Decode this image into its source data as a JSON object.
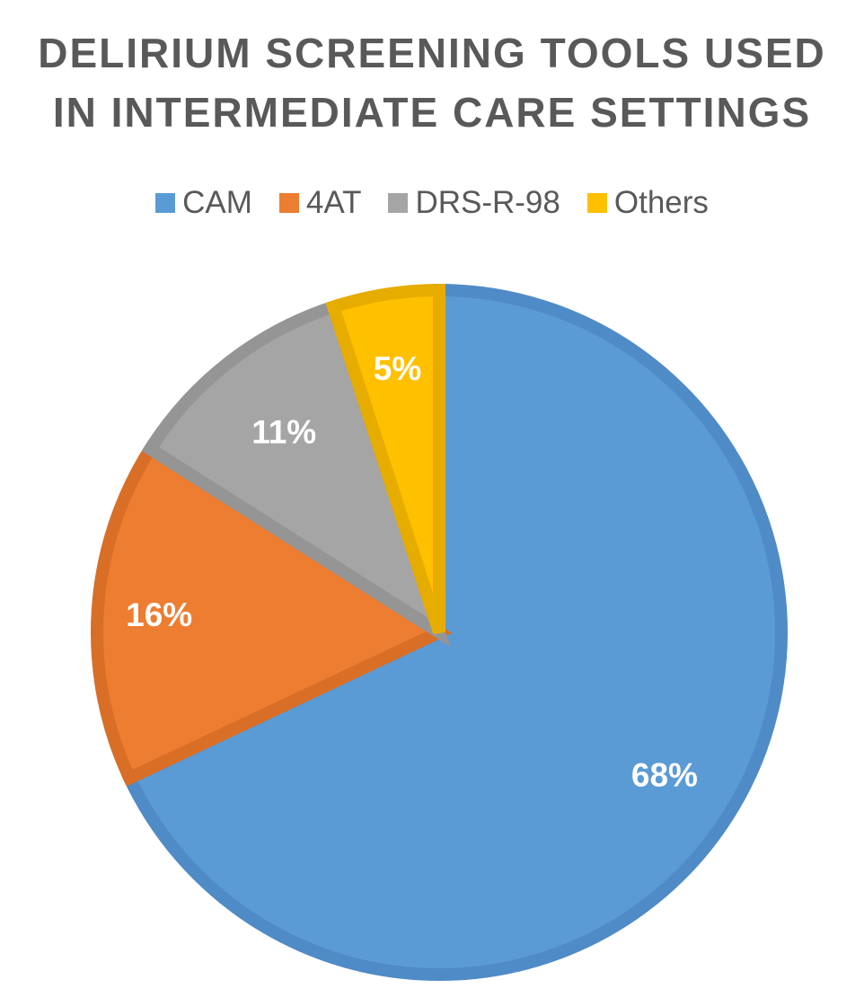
{
  "chart_data": {
    "type": "pie",
    "title_lines": [
      "DELIRIUM SCREENING TOOLS USED",
      "IN INTERMEDIATE CARE SETTINGS"
    ],
    "legend_position": "top",
    "slices": [
      {
        "label": "CAM",
        "value": 68,
        "display": "68%",
        "color": "#5B9BD5",
        "stroke": "#4F8BC6"
      },
      {
        "label": "4AT",
        "value": 16,
        "display": "16%",
        "color": "#ED7D31",
        "stroke": "#D96E26"
      },
      {
        "label": "DRS-R-98",
        "value": 11,
        "display": "11%",
        "color": "#A5A5A5",
        "stroke": "#959595"
      },
      {
        "label": "Others",
        "value": 5,
        "display": "5%",
        "color": "#FFC000",
        "stroke": "#E6AC00"
      }
    ]
  }
}
